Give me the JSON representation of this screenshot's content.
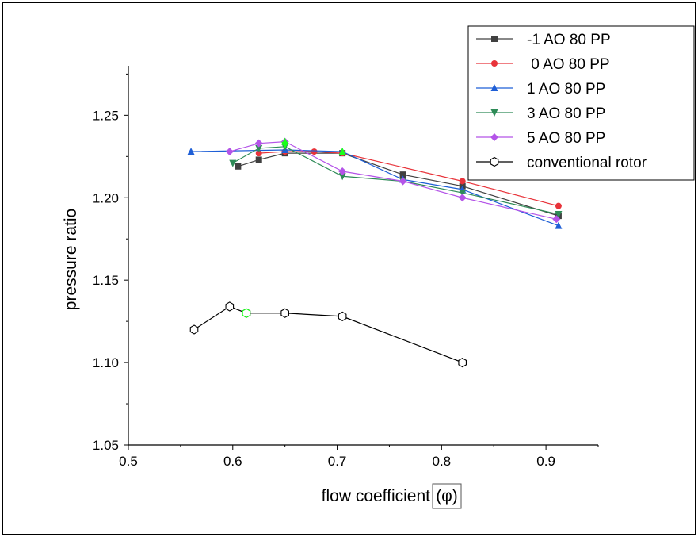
{
  "chart_data": {
    "type": "line",
    "xlabel": "flow coefficient",
    "xlabel_symbol": "(φ)",
    "ylabel": "pressure ratio",
    "xlim": [
      0.5,
      0.95
    ],
    "ylim": [
      1.05,
      1.28
    ],
    "x_ticks": [
      "0.5",
      "0.6",
      "0.7",
      "0.8",
      "0.9"
    ],
    "y_ticks": [
      "1.05",
      "1.10",
      "1.15",
      "1.20",
      "1.25"
    ],
    "x_tick_values": [
      0.5,
      0.6,
      0.7,
      0.8,
      0.9
    ],
    "y_tick_values": [
      1.05,
      1.1,
      1.15,
      1.2,
      1.25
    ],
    "legend_position": "top-right",
    "grid": false,
    "series": [
      {
        "name": "-1 AO 80 PP",
        "color": "#404040",
        "marker": "square",
        "x": [
          0.605,
          0.625,
          0.65,
          0.705,
          0.763,
          0.82,
          0.912
        ],
        "y": [
          1.219,
          1.223,
          1.227,
          1.227,
          1.214,
          1.207,
          1.189
        ]
      },
      {
        "name": " 0 AO 80 PP",
        "color": "#e8333a",
        "marker": "circle",
        "x": [
          0.625,
          0.65,
          0.678,
          0.705,
          0.82,
          0.912
        ],
        "y": [
          1.227,
          1.228,
          1.228,
          1.227,
          1.21,
          1.195
        ]
      },
      {
        "name": "1 AO 80 PP",
        "color": "#1f5fd6",
        "marker": "triangle-up",
        "x": [
          0.56,
          0.65,
          0.705,
          0.763,
          0.82,
          0.912
        ],
        "y": [
          1.228,
          1.229,
          1.228,
          1.211,
          1.205,
          1.183
        ]
      },
      {
        "name": "3 AO 80 PP",
        "color": "#2e8b57",
        "marker": "triangle-down",
        "x": [
          0.6,
          0.625,
          0.65,
          0.705,
          0.763,
          0.82,
          0.912
        ],
        "y": [
          1.221,
          1.23,
          1.231,
          1.213,
          1.21,
          1.203,
          1.19
        ]
      },
      {
        "name": "5 AO 80 PP",
        "color": "#b454e8",
        "marker": "diamond",
        "x": [
          0.597,
          0.625,
          0.65,
          0.705,
          0.763,
          0.82,
          0.91
        ],
        "y": [
          1.228,
          1.233,
          1.234,
          1.216,
          1.21,
          1.2,
          1.187
        ]
      },
      {
        "name": "conventional rotor",
        "color": "#000000",
        "marker": "hexagon-open",
        "x": [
          0.563,
          0.597,
          0.613,
          0.65,
          0.705,
          0.82
        ],
        "y": [
          1.12,
          1.134,
          1.13,
          1.13,
          1.128,
          1.1
        ]
      }
    ],
    "highlighted_points": [
      {
        "series": "3 AO 80 PP",
        "x": 0.65,
        "y": 1.234,
        "marker": "triangle-up",
        "color": "#1aff1a"
      },
      {
        "series": "3 AO 80 PP",
        "x": 0.65,
        "y": 1.232,
        "marker": "triangle-down",
        "color": "#1aff1a"
      },
      {
        "series": "3 AO 80 PP",
        "x": 0.705,
        "y": 1.228,
        "marker": "triangle-up",
        "color": "#1aff1a"
      },
      {
        "series": "conventional rotor",
        "x": 0.613,
        "y": 1.13,
        "marker": "hexagon-open",
        "color": "#1aff1a"
      }
    ]
  }
}
